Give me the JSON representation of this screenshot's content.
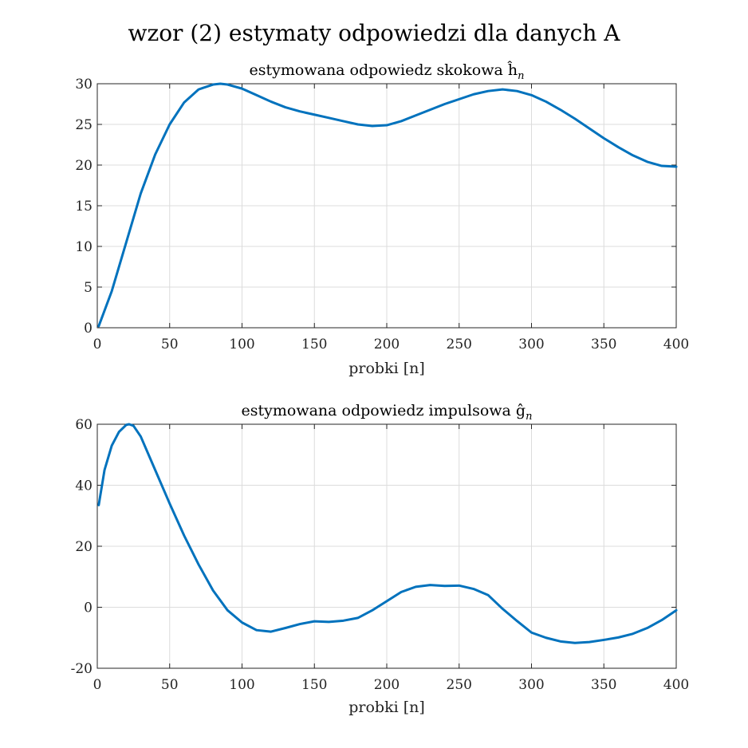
{
  "figure": {
    "suptitle": "wzor (2) estymaty odpowiedzi dla danych A"
  },
  "chart_data": [
    {
      "type": "line",
      "title": "estymowana odpowiedz skokowa ĥ",
      "title_sub": "n",
      "xlabel": "probki [n]",
      "ylabel": "",
      "xlim": [
        0,
        400
      ],
      "ylim": [
        0,
        30
      ],
      "xticks": [
        0,
        50,
        100,
        150,
        200,
        250,
        300,
        350,
        400
      ],
      "yticks": [
        0,
        5,
        10,
        15,
        20,
        25,
        30
      ],
      "grid": true,
      "series": [
        {
          "color": "#0072bd",
          "x": [
            1,
            10,
            20,
            30,
            40,
            50,
            60,
            70,
            80,
            85,
            90,
            100,
            110,
            120,
            130,
            140,
            150,
            160,
            170,
            180,
            190,
            200,
            210,
            220,
            230,
            240,
            250,
            260,
            270,
            280,
            290,
            300,
            310,
            320,
            330,
            340,
            350,
            360,
            370,
            380,
            390,
            400
          ],
          "y": [
            0.2,
            4.5,
            10.5,
            16.5,
            21.3,
            25.0,
            27.7,
            29.3,
            29.9,
            30.0,
            29.9,
            29.4,
            28.6,
            27.8,
            27.1,
            26.6,
            26.2,
            25.8,
            25.4,
            25.0,
            24.8,
            24.9,
            25.4,
            26.1,
            26.8,
            27.5,
            28.1,
            28.7,
            29.1,
            29.3,
            29.1,
            28.6,
            27.8,
            26.8,
            25.7,
            24.5,
            23.3,
            22.2,
            21.2,
            20.4,
            19.9,
            19.8
          ]
        }
      ]
    },
    {
      "type": "line",
      "title": "estymowana odpowiedz impulsowa ĝ",
      "title_sub": "n",
      "xlabel": "probki [n]",
      "ylabel": "",
      "xlim": [
        0,
        400
      ],
      "ylim": [
        -20,
        60
      ],
      "xticks": [
        0,
        50,
        100,
        150,
        200,
        250,
        300,
        350,
        400
      ],
      "yticks": [
        -20,
        0,
        20,
        40,
        60
      ],
      "grid": true,
      "series": [
        {
          "color": "#0072bd",
          "x": [
            1,
            5,
            10,
            15,
            20,
            22,
            25,
            30,
            40,
            50,
            60,
            70,
            80,
            90,
            100,
            110,
            120,
            130,
            140,
            150,
            160,
            170,
            180,
            190,
            200,
            210,
            220,
            230,
            240,
            250,
            260,
            270,
            280,
            290,
            300,
            310,
            320,
            330,
            340,
            350,
            360,
            370,
            380,
            390,
            400
          ],
          "y": [
            33.5,
            45.0,
            53.0,
            57.5,
            59.8,
            60.0,
            59.5,
            56.0,
            45.0,
            34.0,
            23.5,
            14.0,
            5.5,
            -1.0,
            -5.0,
            -7.5,
            -8.0,
            -6.8,
            -5.5,
            -4.6,
            -4.8,
            -4.4,
            -3.5,
            -1.0,
            2.0,
            5.0,
            6.7,
            7.3,
            7.0,
            7.1,
            6.0,
            4.0,
            -0.5,
            -4.5,
            -8.3,
            -10.0,
            -11.2,
            -11.7,
            -11.4,
            -10.7,
            -9.9,
            -8.7,
            -6.8,
            -4.2,
            -1.0
          ]
        }
      ]
    }
  ]
}
